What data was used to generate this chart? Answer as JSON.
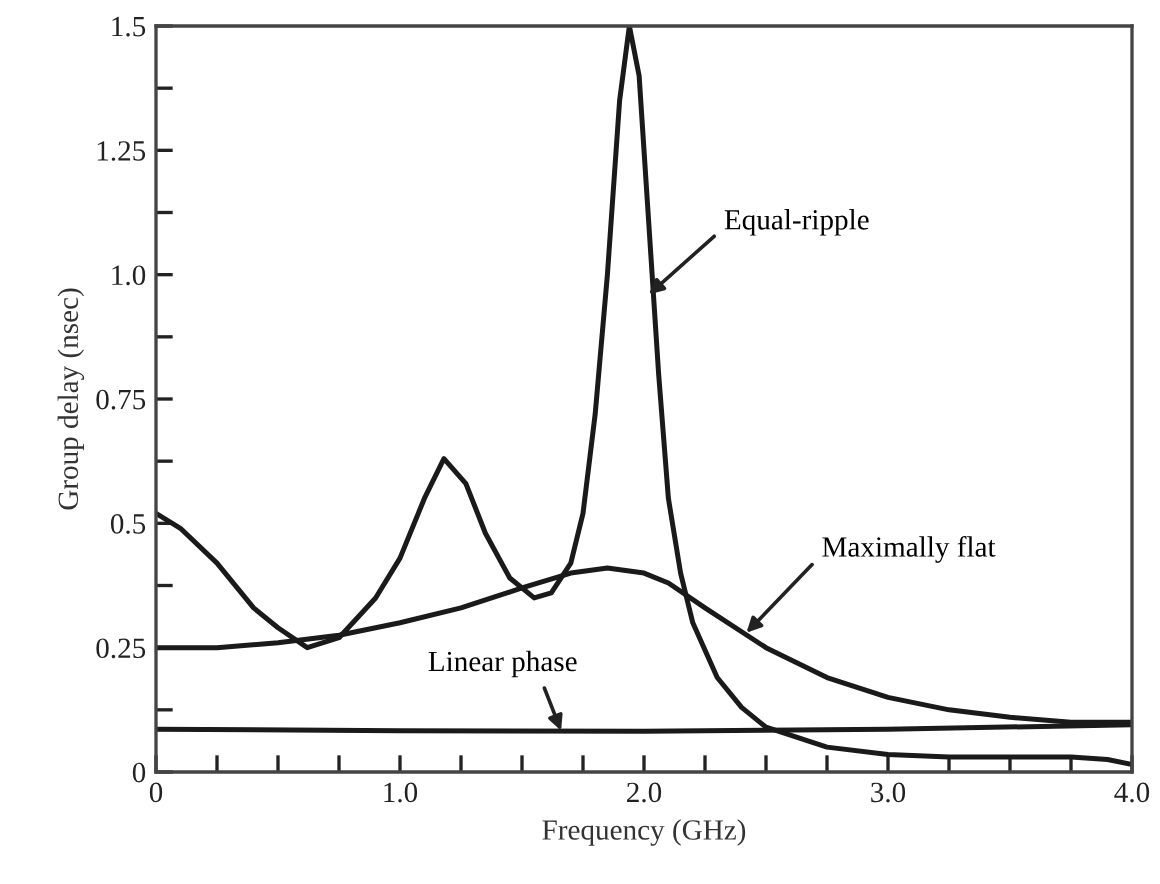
{
  "chart_data": {
    "type": "line",
    "xlabel": "Frequency (GHz)",
    "ylabel": "Group delay (nsec)",
    "xlim": [
      0,
      4.0
    ],
    "ylim": [
      0,
      1.5
    ],
    "xticks": [
      {
        "value": 0,
        "label": "0"
      },
      {
        "value": 0.25,
        "label": null
      },
      {
        "value": 0.5,
        "label": null
      },
      {
        "value": 0.75,
        "label": null
      },
      {
        "value": 1.0,
        "label": "1.0"
      },
      {
        "value": 1.25,
        "label": null
      },
      {
        "value": 1.5,
        "label": null
      },
      {
        "value": 1.75,
        "label": null
      },
      {
        "value": 2.0,
        "label": "2.0"
      },
      {
        "value": 2.25,
        "label": null
      },
      {
        "value": 2.5,
        "label": null
      },
      {
        "value": 2.75,
        "label": null
      },
      {
        "value": 3.0,
        "label": "3.0"
      },
      {
        "value": 3.25,
        "label": null
      },
      {
        "value": 3.5,
        "label": null
      },
      {
        "value": 3.75,
        "label": null
      },
      {
        "value": 4.0,
        "label": "4.0"
      }
    ],
    "yticks": [
      0,
      {
        "value": 0.125,
        "label": null
      },
      0.25,
      {
        "value": 0.375,
        "label": null
      },
      0.5,
      {
        "value": 0.625,
        "label": null
      },
      0.75,
      {
        "value": 0.875,
        "label": null
      },
      {
        "value": 1.0,
        "label": "1.0"
      },
      {
        "value": 1.125,
        "label": null
      },
      1.25,
      {
        "value": 1.375,
        "label": null
      },
      1.5
    ],
    "grid": false,
    "marker": "none",
    "line_style": "solid",
    "series": [
      {
        "color": "#1a1a1a",
        "x": [
          0,
          0.1,
          0.25,
          0.4,
          0.5,
          0.62,
          0.75,
          0.9,
          1.0,
          1.1,
          1.18,
          1.27,
          1.35,
          1.45,
          1.55,
          1.62,
          1.7,
          1.75,
          1.8,
          1.85,
          1.9,
          1.94,
          1.98,
          2.02,
          2.06,
          2.1,
          2.15,
          2.2,
          2.3,
          2.4,
          2.5,
          2.75,
          3.0,
          3.25,
          3.5,
          3.75,
          3.9,
          4.0
        ],
        "values": [
          0.52,
          0.49,
          0.42,
          0.33,
          0.29,
          0.25,
          0.27,
          0.35,
          0.43,
          0.55,
          0.63,
          0.58,
          0.48,
          0.39,
          0.35,
          0.36,
          0.42,
          0.52,
          0.72,
          1.0,
          1.35,
          1.5,
          1.4,
          1.1,
          0.8,
          0.55,
          0.4,
          0.3,
          0.19,
          0.13,
          0.09,
          0.05,
          0.035,
          0.03,
          0.03,
          0.03,
          0.025,
          0.015
        ]
      },
      {
        "color": "#1a1a1a",
        "x": [
          0,
          0.25,
          0.5,
          0.75,
          1.0,
          1.25,
          1.5,
          1.7,
          1.85,
          2.0,
          2.1,
          2.25,
          2.5,
          2.75,
          3.0,
          3.25,
          3.5,
          3.75,
          4.0
        ],
        "values": [
          0.25,
          0.25,
          0.26,
          0.275,
          0.3,
          0.33,
          0.37,
          0.4,
          0.41,
          0.4,
          0.38,
          0.33,
          0.25,
          0.19,
          0.15,
          0.125,
          0.11,
          0.1,
          0.1
        ]
      },
      {
        "color": "#1a1a1a",
        "x": [
          0,
          1.0,
          2.0,
          3.0,
          4.0
        ],
        "values": [
          0.086,
          0.083,
          0.082,
          0.086,
          0.095
        ]
      }
    ],
    "annotations": [
      {
        "text": "Equal-ripple",
        "x": 2.02,
        "y": 0.96
      },
      {
        "text": "Maximally flat",
        "x": 2.42,
        "y": 0.28
      },
      {
        "text": "Linear phase",
        "x": 1.66,
        "y": 0.083
      }
    ]
  }
}
